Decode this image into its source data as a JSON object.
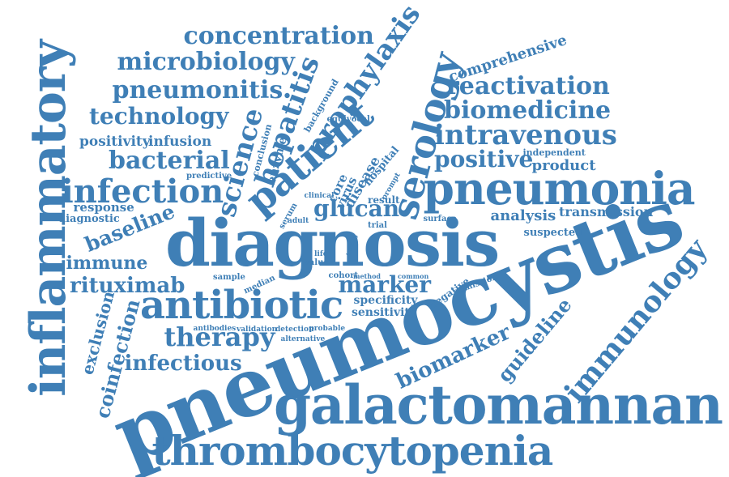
{
  "colors": {
    "text": "#3f7fb6",
    "background": "#ffffff"
  },
  "words": [
    "pneumocystis",
    "diagnosis",
    "galactomannan",
    "inflammatory",
    "thrombocytopenia",
    "pneumonia",
    "antibiotic",
    "patient",
    "serology",
    "infection",
    "immunology",
    "prophylaxis",
    "intravenous",
    "hepatitis",
    "science",
    "concentration",
    "microbiology",
    "reactivation",
    "biomedicine",
    "pneumonitis",
    "therapy",
    "technology",
    "bacterial",
    "marker",
    "biomarker",
    "infectious",
    "coinfection",
    "rituximab",
    "glucan",
    "positive",
    "guideline",
    "baseline",
    "immune",
    "exclusion",
    "comprehensive",
    "positivity",
    "infusion",
    "product",
    "analysis",
    "transmission",
    "response",
    "diagnostic",
    "suspected",
    "specificity",
    "sensitivity",
    "disease",
    "virus",
    "hospital",
    "core",
    "independent",
    "result",
    "enzyme",
    "conclusion",
    "background",
    "equivocal",
    "predictive",
    "clinical",
    "serum",
    "adult",
    "trial",
    "surface",
    "cohort",
    "method",
    "common",
    "life",
    "value",
    "sample",
    "median",
    "negative",
    "admission",
    "antibodies",
    "validation",
    "detection",
    "probable",
    "alternative",
    "prompt",
    "testing"
  ]
}
